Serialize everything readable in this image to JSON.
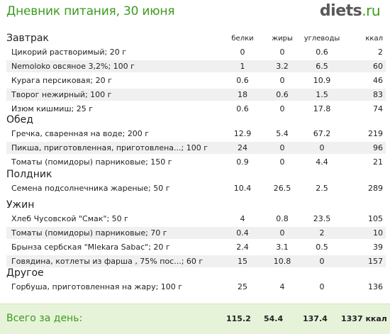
{
  "header": {
    "title": "Дневник питания, 30 июня",
    "logo_main": "diets",
    "logo_tld": ".ru"
  },
  "columns": {
    "protein": "белки",
    "fat": "жиры",
    "carbs": "углеводы",
    "kcal": "ккал"
  },
  "meals": [
    {
      "name": "Завтрак",
      "items": [
        {
          "name": "Цикорий растворимый; 20 г",
          "protein": "0",
          "fat": "0",
          "carbs": "0.6",
          "kcal": "2"
        },
        {
          "name": "Nemoloko овсяное 3,2%; 100 г",
          "protein": "1",
          "fat": "3.2",
          "carbs": "6.5",
          "kcal": "60"
        },
        {
          "name": "Курага персиковая; 20 г",
          "protein": "0.6",
          "fat": "0",
          "carbs": "10.9",
          "kcal": "46"
        },
        {
          "name": "Творог нежирный; 100 г",
          "protein": "18",
          "fat": "0.6",
          "carbs": "1.5",
          "kcal": "83"
        },
        {
          "name": "Изюм кишмиш; 25 г",
          "protein": "0.6",
          "fat": "0",
          "carbs": "17.8",
          "kcal": "74"
        }
      ]
    },
    {
      "name": "Обед",
      "items": [
        {
          "name": "Гречка, сваренная на воде; 200 г",
          "protein": "12.9",
          "fat": "5.4",
          "carbs": "67.2",
          "kcal": "219"
        },
        {
          "name": "Пикша, приготовленная, приготовлена...; 100 г",
          "protein": "24",
          "fat": "0",
          "carbs": "0",
          "kcal": "96"
        },
        {
          "name": "Томаты (помидоры) парниковые; 150 г",
          "protein": "0.9",
          "fat": "0",
          "carbs": "4.4",
          "kcal": "21"
        }
      ]
    },
    {
      "name": "Полдник",
      "items": [
        {
          "name": "Семена подсолнечника жареные; 50 г",
          "protein": "10.4",
          "fat": "26.5",
          "carbs": "2.5",
          "kcal": "289"
        }
      ]
    },
    {
      "name": "Ужин",
      "items": [
        {
          "name": "Хлеб Чусовской \"Смак\"; 50 г",
          "protein": "4",
          "fat": "0.8",
          "carbs": "23.5",
          "kcal": "105"
        },
        {
          "name": "Томаты (помидоры) парниковые; 70 г",
          "protein": "0.4",
          "fat": "0",
          "carbs": "2",
          "kcal": "10"
        },
        {
          "name": "Брынза сербская \"Mlekara Sabac\"; 20 г",
          "protein": "2.4",
          "fat": "3.1",
          "carbs": "0.5",
          "kcal": "39"
        },
        {
          "name": "Говядина, котлеты из фарша , 75% пос...; 60 г",
          "protein": "15",
          "fat": "10.8",
          "carbs": "0",
          "kcal": "157"
        }
      ]
    },
    {
      "name": "Другое",
      "items": [
        {
          "name": "Горбуша, приготовленная на жару; 100 г",
          "protein": "25",
          "fat": "4",
          "carbs": "0",
          "kcal": "136"
        }
      ]
    }
  ],
  "totals": {
    "label": "Всего за день:",
    "protein": "115.2",
    "fat": "54.4",
    "carbs": "137.4",
    "kcal": "1337 ккал"
  },
  "colors": {
    "accent": "#3d9a1e",
    "logo": "#595959",
    "row_alt": "#f0f0f0",
    "totals_bg": "#e6f3d9"
  }
}
